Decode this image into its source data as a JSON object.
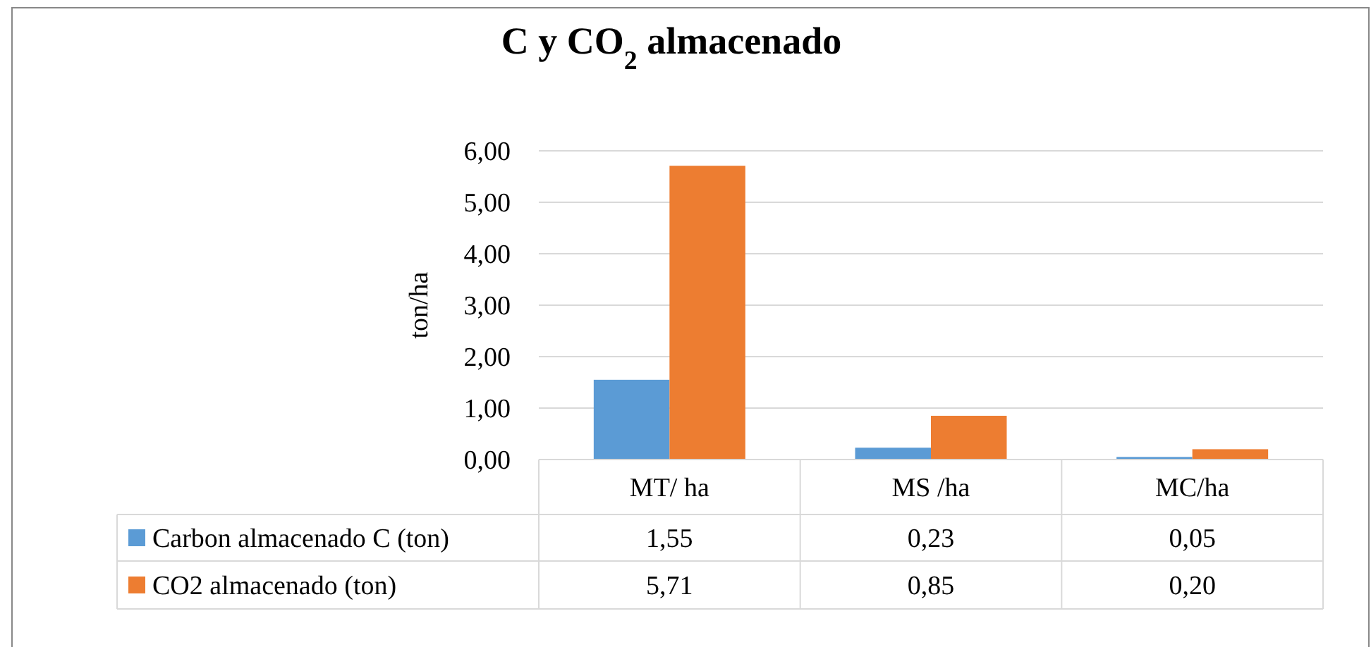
{
  "chart_data": {
    "type": "bar",
    "title": "C y CO$_{2}$ almacenado",
    "ylabel": "ton/ha",
    "categories": [
      "MT/ ha",
      "MS /ha",
      "MC/ha"
    ],
    "series": [
      {
        "name": "Carbon almacenado C (ton)",
        "color": "#5b9bd5",
        "values": [
          1.55,
          0.23,
          0.05
        ],
        "value_labels": [
          "1,55",
          "0,23",
          "0,05"
        ]
      },
      {
        "name": "CO2 almacenado (ton)",
        "color": "#ed7d31",
        "values": [
          5.71,
          0.85,
          0.2
        ],
        "value_labels": [
          "5,71",
          "0,85",
          "0,20"
        ]
      }
    ],
    "ylim": [
      0,
      6
    ],
    "yticks": [
      {
        "value": 0,
        "label": "0,00"
      },
      {
        "value": 1,
        "label": "1,00"
      },
      {
        "value": 2,
        "label": "2,00"
      },
      {
        "value": 3,
        "label": "3,00"
      },
      {
        "value": 4,
        "label": "4,00"
      },
      {
        "value": 5,
        "label": "5,00"
      },
      {
        "value": 6,
        "label": "6,00"
      }
    ],
    "grid": "y",
    "legend": "bottom"
  }
}
